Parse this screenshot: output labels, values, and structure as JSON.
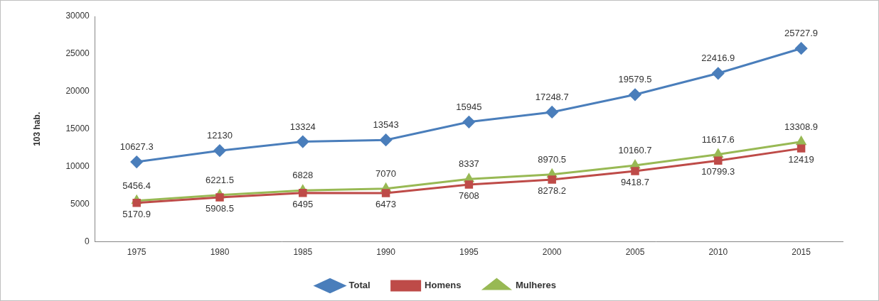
{
  "chart_data": {
    "type": "line",
    "y_label": "103 hab.",
    "categories": [
      "1975",
      "1980",
      "1985",
      "1990",
      "1995",
      "2000",
      "2005",
      "2010",
      "2015"
    ],
    "series": [
      {
        "name": "Total",
        "color": "#4a7ebb",
        "marker": "diamond",
        "values": [
          10627.3,
          12130,
          13324,
          13543,
          15945,
          17248.7,
          19579.5,
          22416.9,
          25727.9
        ]
      },
      {
        "name": "Homens",
        "color": "#be4b48",
        "marker": "square",
        "values": [
          5170.9,
          5908.5,
          6495,
          6473,
          7608,
          8278.2,
          9418.7,
          10799.3,
          12419
        ]
      },
      {
        "name": "Mulheres",
        "color": "#98b954",
        "marker": "triangle",
        "values": [
          5456.4,
          6221.5,
          6828,
          7070,
          8337,
          8970.5,
          10160.7,
          11617.6,
          13308.9
        ]
      }
    ],
    "ylim": [
      0,
      30000
    ],
    "yticks": [
      0,
      5000,
      10000,
      15000,
      20000,
      25000,
      30000
    ],
    "grid": false,
    "legend": "bottom",
    "data_labels": true
  }
}
